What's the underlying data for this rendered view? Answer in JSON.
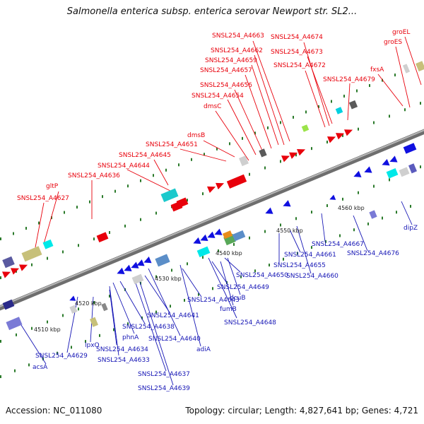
{
  "title": "Salmonella enterica subsp. enterica serovar Newport str. SL2...",
  "footer": {
    "accession": "Accession: NC_011080",
    "topology": "Topology: circular; Length: 4,827,641 bp; Genes: 4,721"
  },
  "colors": {
    "forward": "#e8000b",
    "reverse": "#1010e0",
    "backbone": "#888888",
    "tick": "#2a7a2a"
  },
  "kbp_ticks": [
    "4510 kbp",
    "4520 kbp",
    "4530 kbp",
    "4540 kbp",
    "4550 kbp",
    "4560 kbp"
  ],
  "forward_labels": [
    "SNSL254_A4627",
    "gltP",
    "SNSL254_A4636",
    "SNSL254_A4644",
    "SNSL254_A4645",
    "SNSL254_A4651",
    "dmsB",
    "dmsC",
    "SNSL254_A4654",
    "SNSL254_A4656",
    "SNSL254_A4657",
    "SNSL254_A4659",
    "SNSL254_A4662",
    "SNSL254_A4663",
    "SNSL254_A4674",
    "SNSL254_A4673",
    "SNSL254_A4672",
    "SNSL254_A4679",
    "fxsA",
    "groES",
    "groEL"
  ],
  "reverse_labels": [
    "acsA",
    "SNSL254_A4629",
    "lpxO",
    "SNSL254_A4634",
    "SNSL254_A4633",
    "phnA",
    "SNSL254_A4638",
    "SNSL254_A4637",
    "SNSL254_A4639",
    "SNSL254_A4641",
    "SNSL254_A4640",
    "adiA",
    "SNSL254_A4643",
    "SNSL254_A4649",
    "SNSL254_A4650",
    "fumB",
    "dcuB",
    "SNSL254_A4648",
    "SNSL254_A4655",
    "SNSL254_A4661",
    "SNSL254_A4660",
    "SNSL254_A4667",
    "SNSL254_A4676",
    "dipZ"
  ]
}
